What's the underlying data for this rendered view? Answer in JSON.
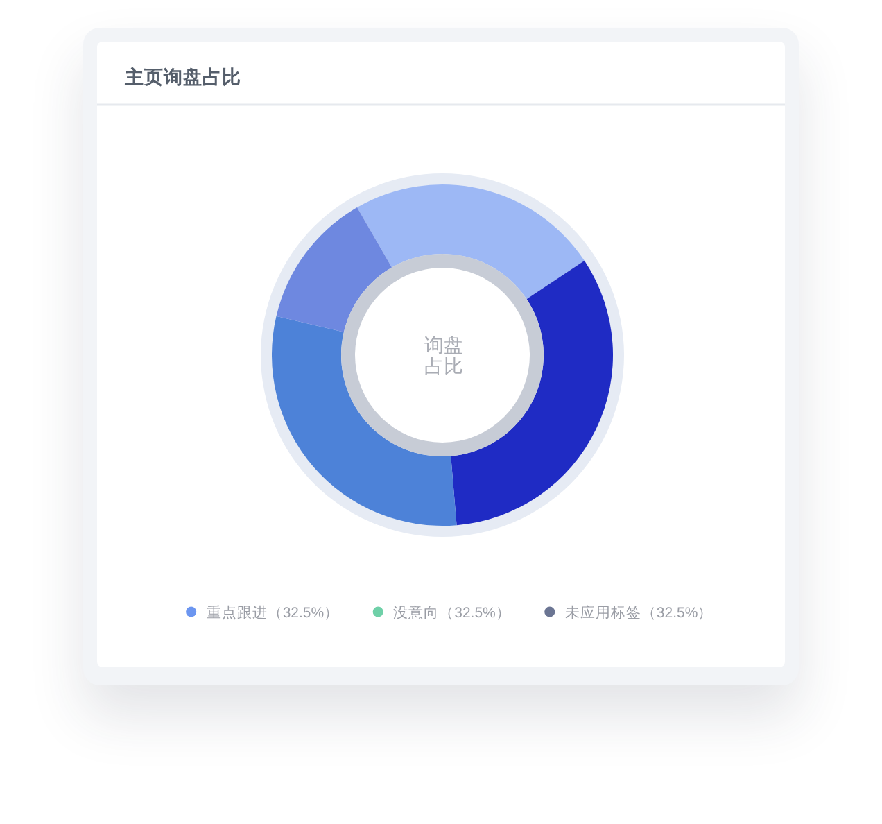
{
  "chart_data": [
    {
      "type": "donut",
      "title": "主页询盘占比",
      "categories": [
        null,
        null,
        null,
        null
      ],
      "values": [
        24,
        33,
        30,
        13
      ],
      "colors": [
        "#9db8f5",
        "#1f2bc4",
        "#4d82d8",
        "#6e88e0"
      ],
      "annotations": [
        "询盘占比"
      ]
    },
    {
      "type": "other",
      "categories": [
        "重点跟进（32.5%）",
        "没意向（32.5%）",
        "未应用标签（32.5%）"
      ],
      "colors": [
        "#6c96f0",
        "#6fd0a8",
        "#6b7593"
      ]
    }
  ]
}
